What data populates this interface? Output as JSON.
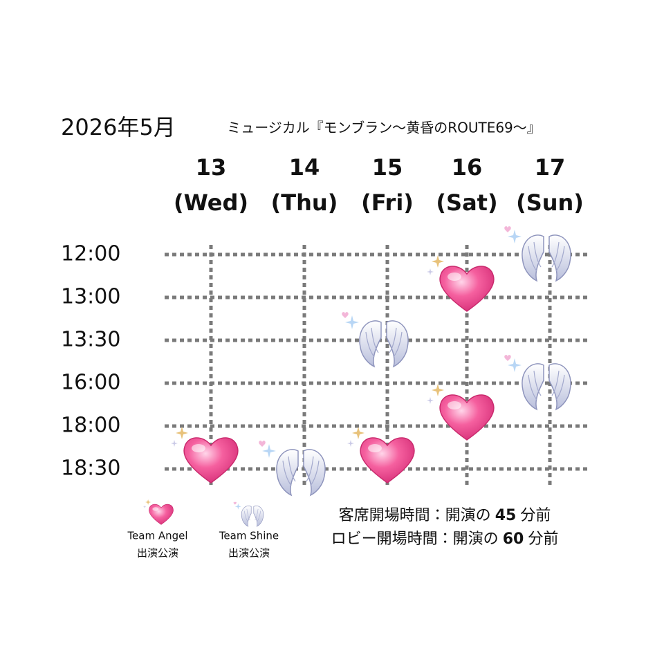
{
  "header": {
    "month": "2026年5月",
    "show": "ミュージカル『モンブラン～黄昏のROUTE69～』"
  },
  "days": [
    {
      "date": "13",
      "weekday": "(Wed)"
    },
    {
      "date": "14",
      "weekday": "(Thu)"
    },
    {
      "date": "15",
      "weekday": "(Fri)"
    },
    {
      "date": "16",
      "weekday": "(Sat)"
    },
    {
      "date": "17",
      "weekday": "(Sun)"
    }
  ],
  "times": [
    "12:00",
    "13:00",
    "13:30",
    "16:00",
    "18:00",
    "18:30"
  ],
  "performances": [
    {
      "day": "13",
      "time": "18:30",
      "team": "Team Angel"
    },
    {
      "day": "14",
      "time": "18:30",
      "team": "Team Shine"
    },
    {
      "day": "15",
      "time": "13:30",
      "team": "Team Shine"
    },
    {
      "day": "15",
      "time": "18:30",
      "team": "Team Angel"
    },
    {
      "day": "16",
      "time": "13:00",
      "team": "Team Angel"
    },
    {
      "day": "16",
      "time": "18:00",
      "team": "Team Angel"
    },
    {
      "day": "17",
      "time": "12:00",
      "team": "Team Shine"
    },
    {
      "day": "17",
      "time": "16:00",
      "team": "Team Shine"
    }
  ],
  "legend": [
    {
      "team": "Team Angel",
      "note": "出演公演"
    },
    {
      "team": "Team Shine",
      "note": "出演公演"
    }
  ],
  "notes": [
    {
      "label": "客席開場時間：開演の",
      "minutes": "45",
      "unit": "分前"
    },
    {
      "label": "ロビー開場時間：開演の",
      "minutes": "60",
      "unit": "分前"
    }
  ]
}
